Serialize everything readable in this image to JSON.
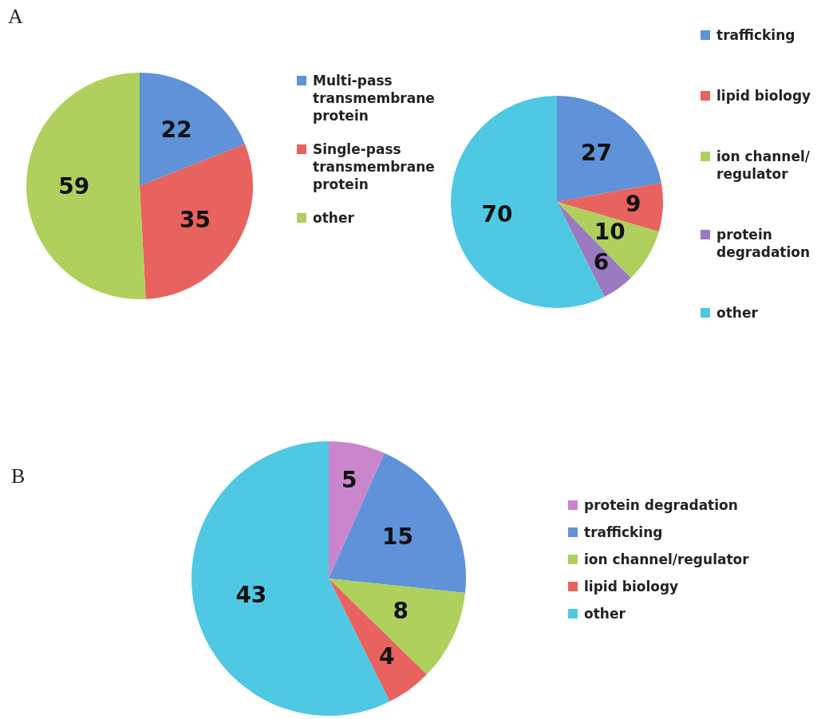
{
  "chart_data": [
    {
      "type": "pie",
      "title": "A",
      "categories": [
        "Multi-pass transmembrane protein",
        "Single-pass transmembrane protein",
        "other"
      ],
      "values": [
        22,
        35,
        59
      ],
      "colors": [
        "#5f92d8",
        "#e8625f",
        "#afd05c"
      ],
      "data_labels": true,
      "legend": "right"
    },
    {
      "type": "pie",
      "categories": [
        "trafficking",
        "lipid biology",
        "ion channel/ regulator",
        "protein degradation",
        "other"
      ],
      "values": [
        27,
        9,
        10,
        6,
        70
      ],
      "colors": [
        "#5f92d8",
        "#e8625f",
        "#afd05c",
        "#9a7bc2",
        "#4fc8e4"
      ],
      "data_labels": true,
      "legend": "right"
    },
    {
      "type": "pie",
      "title": "B",
      "categories": [
        "protein degradation",
        "trafficking",
        "ion channel/regulator",
        "lipid biology",
        "other"
      ],
      "values": [
        5,
        15,
        8,
        4,
        43
      ],
      "colors": [
        "#c986cc",
        "#5f92d8",
        "#afd05c",
        "#e8625f",
        "#4fc8e4"
      ],
      "data_labels": true,
      "legend": "right"
    }
  ]
}
